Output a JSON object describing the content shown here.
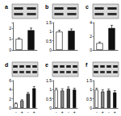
{
  "chart_data": [
    {
      "type": "bar",
      "title": "a",
      "categories": [
        null,
        null
      ],
      "values": [
        1,
        1.8
      ],
      "errors": [
        0.1,
        0.2
      ],
      "colors": [
        "#ffffff",
        "#111111"
      ],
      "ylim": [
        0,
        2.5
      ],
      "yticks": [
        0,
        1,
        2
      ],
      "grid": false
    },
    {
      "type": "bar",
      "title": "b",
      "categories": [
        null,
        null
      ],
      "values": [
        1,
        1.05
      ],
      "errors": [
        0.08,
        0.1
      ],
      "colors": [
        "#ffffff",
        "#111111"
      ],
      "ylim": [
        0,
        1.5
      ],
      "yticks": [
        0,
        0.5,
        1,
        1.5
      ],
      "grid": false
    },
    {
      "type": "bar",
      "title": "c",
      "categories": [
        null,
        null
      ],
      "values": [
        1,
        3.2
      ],
      "errors": [
        0.15,
        0.4
      ],
      "colors": [
        "#ffffff",
        "#111111"
      ],
      "ylim": [
        0,
        4
      ],
      "yticks": [
        0,
        2,
        4
      ],
      "grid": false
    },
    {
      "type": "bar",
      "title": "d",
      "categories": [
        "-",
        "+",
        "-",
        "+"
      ],
      "values": [
        1,
        1.6,
        3.1,
        4.3
      ],
      "errors": [
        0.1,
        0.2,
        0.3,
        0.4
      ],
      "colors": [
        "#ffffff",
        "#888888",
        "#444444",
        "#111111"
      ],
      "ylim": [
        0,
        6
      ],
      "yticks": [
        0,
        2,
        4,
        6
      ],
      "grid": false
    },
    {
      "type": "bar",
      "title": "e",
      "categories": [
        "-",
        "+",
        "-",
        "+"
      ],
      "values": [
        1,
        0.95,
        1.05,
        1
      ],
      "errors": [
        0.08,
        0.1,
        0.1,
        0.08
      ],
      "colors": [
        "#ffffff",
        "#888888",
        "#444444",
        "#111111"
      ],
      "ylim": [
        0,
        1.5
      ],
      "yticks": [
        0,
        0.5,
        1,
        1.5
      ],
      "grid": false
    },
    {
      "type": "bar",
      "title": "f",
      "categories": [
        "-",
        "+",
        "-",
        "+"
      ],
      "values": [
        1,
        0.9,
        0.95,
        0.85
      ],
      "errors": [
        0.08,
        0.1,
        0.08,
        0.1
      ],
      "colors": [
        "#ffffff",
        "#888888",
        "#444444",
        "#111111"
      ],
      "ylim": [
        0,
        1.5
      ],
      "yticks": [
        0,
        0.5,
        1,
        1.5
      ],
      "grid": false
    }
  ]
}
